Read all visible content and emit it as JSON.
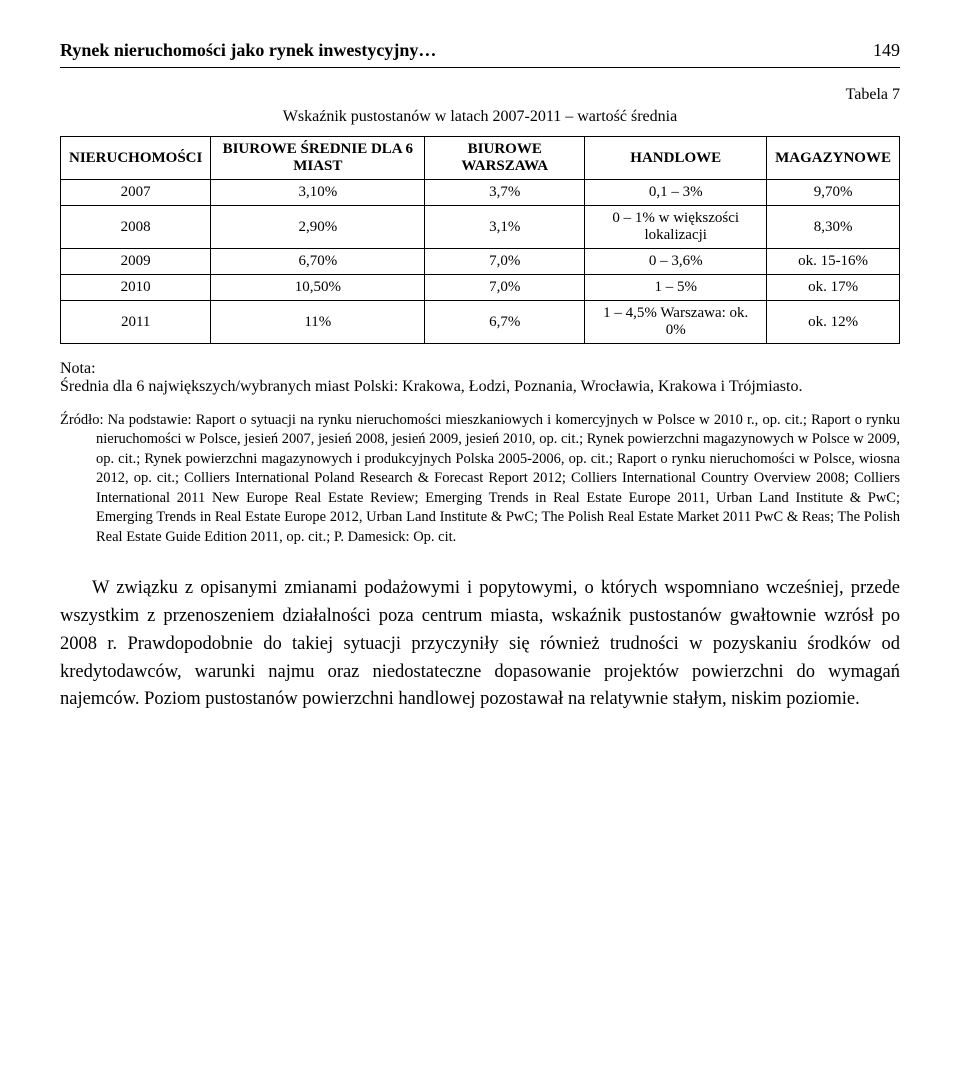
{
  "header": {
    "title": "Rynek nieruchomości jako rynek inwestycyjny…",
    "page": "149"
  },
  "table_label": "Tabela 7",
  "table_caption": "Wskaźnik pustostanów w latach 2007-2011 – wartość średnia",
  "table": {
    "headers": [
      "NIERUCHOMOŚCI",
      "BIUROWE ŚREDNIE DLA 6 MIAST",
      "BIUROWE WARSZAWA",
      "HANDLOWE",
      "MAGAZYNOWE"
    ],
    "rows": [
      [
        "2007",
        "3,10%",
        "3,7%",
        "0,1 – 3%",
        "9,70%"
      ],
      [
        "2008",
        "2,90%",
        "3,1%",
        "0 – 1% w większości lokalizacji",
        "8,30%"
      ],
      [
        "2009",
        "6,70%",
        "7,0%",
        "0 – 3,6%",
        "ok. 15-16%"
      ],
      [
        "2010",
        "10,50%",
        "7,0%",
        "1 – 5%",
        "ok. 17%"
      ],
      [
        "2011",
        "11%",
        "6,7%",
        "1 – 4,5% Warszawa: ok. 0%",
        "ok. 12%"
      ]
    ]
  },
  "nota": {
    "label": "Nota:",
    "text": "Średnia dla 6 największych/wybranych miast Polski: Krakowa, Łodzi, Poznania, Wrocławia, Krakowa i Trójmiasto."
  },
  "source": "Źródło: Na podstawie: Raport o sytuacji na rynku nieruchomości mieszkaniowych i komercyjnych w Polsce w 2010 r., op. cit.; Raport o rynku nieruchomości w Polsce, jesień 2007, jesień 2008, jesień 2009, jesień 2010, op. cit.; Rynek powierzchni magazynowych w Polsce w 2009, op. cit.; Rynek powierzchni magazynowych i produkcyjnych Polska 2005-2006, op. cit.; Raport o rynku nieruchomości w Polsce, wiosna 2012, op. cit.; Colliers International Poland Research & Forecast Report 2012; Colliers International Country Overview 2008; Colliers International 2011 New Europe Real Estate Review; Emerging Trends in Real Estate Europe 2011, Urban Land Institute & PwC; Emerging Trends in Real Estate Europe 2012, Urban Land Institute & PwC; The Polish Real Estate Market 2011 PwC & Reas; The Polish Real Estate Guide Edition 2011, op. cit.; P. Damesick: Op. cit.",
  "body": "W związku z opisanymi zmianami podażowymi i popytowymi, o których wspomniano wcześniej, przede wszystkim z przenoszeniem działalności poza centrum miasta, wskaźnik pustostanów gwałtownie wzrósł po 2008 r. Prawdopodobnie do takiej sytuacji przyczyniły się również trudności w pozyskaniu środków od kredytodawców, warunki najmu oraz niedostateczne dopasowanie projektów powierzchni do wymagań najemców. Poziom pustostanów powierzchni handlowej pozostawał na relatywnie stałym, niskim poziomie."
}
